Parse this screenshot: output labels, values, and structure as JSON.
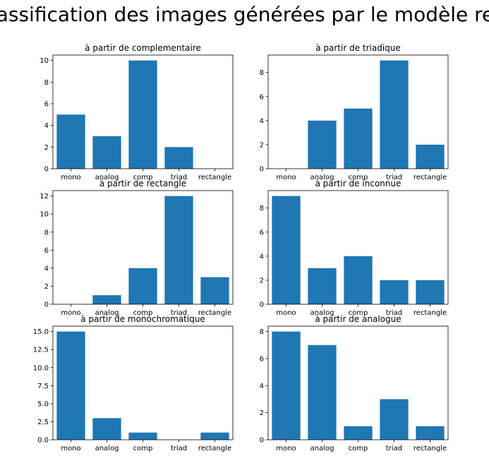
{
  "figure": {
    "suptitle": "Classification des images générées par le modèle rect"
  },
  "colors": {
    "bar": "#1f77b4",
    "axis": "#000000",
    "background": "#ffffff"
  },
  "chart_data": [
    {
      "type": "bar",
      "title": "à partir de complementaire",
      "categories": [
        "mono",
        "analog",
        "comp",
        "triad",
        "rectangle"
      ],
      "values": [
        5,
        3,
        10,
        2,
        0
      ],
      "ylim": [
        0,
        10.5
      ],
      "yticks": [
        0,
        2,
        4,
        6,
        8,
        10
      ],
      "ytick_labels": [
        "0",
        "2",
        "4",
        "6",
        "8",
        "10"
      ],
      "xlabel": "",
      "ylabel": "",
      "grid": false
    },
    {
      "type": "bar",
      "title": "à partir de triadique",
      "categories": [
        "mono",
        "analog",
        "comp",
        "triad",
        "rectangle"
      ],
      "values": [
        0,
        4,
        5,
        9,
        2
      ],
      "ylim": [
        0,
        9.45
      ],
      "yticks": [
        0,
        2,
        4,
        6,
        8
      ],
      "ytick_labels": [
        "0",
        "2",
        "4",
        "6",
        "8"
      ],
      "xlabel": "",
      "ylabel": "",
      "grid": false
    },
    {
      "type": "bar",
      "title": "à partir de rectangle",
      "categories": [
        "mono",
        "analog",
        "comp",
        "triad",
        "rectangle"
      ],
      "values": [
        0,
        1,
        4,
        12,
        3
      ],
      "ylim": [
        0,
        12.6
      ],
      "yticks": [
        0,
        2,
        4,
        6,
        8,
        10,
        12
      ],
      "ytick_labels": [
        "0",
        "2",
        "4",
        "6",
        "8",
        "10",
        "12"
      ],
      "xlabel": "",
      "ylabel": "",
      "grid": false
    },
    {
      "type": "bar",
      "title": "à partir de inconnue",
      "categories": [
        "mono",
        "analog",
        "comp",
        "triad",
        "rectangle"
      ],
      "values": [
        9,
        3,
        4,
        2,
        2
      ],
      "ylim": [
        0,
        9.45
      ],
      "yticks": [
        0,
        2,
        4,
        6,
        8
      ],
      "ytick_labels": [
        "0",
        "2",
        "4",
        "6",
        "8"
      ],
      "xlabel": "",
      "ylabel": "",
      "grid": false
    },
    {
      "type": "bar",
      "title": "à partir de monochromatique",
      "categories": [
        "mono",
        "analog",
        "comp",
        "triad",
        "rectangle"
      ],
      "values": [
        15,
        3,
        1,
        0,
        1
      ],
      "ylim": [
        0,
        15.75
      ],
      "yticks": [
        0,
        2.5,
        5,
        7.5,
        10,
        12.5,
        15
      ],
      "ytick_labels": [
        "0.0",
        "2.5",
        "5.0",
        "7.5",
        "10.0",
        "12.5",
        "15.0"
      ],
      "xlabel": "",
      "ylabel": "",
      "grid": false
    },
    {
      "type": "bar",
      "title": "à partir de analogue",
      "categories": [
        "mono",
        "analog",
        "comp",
        "triad",
        "rectangle"
      ],
      "values": [
        8,
        7,
        1,
        3,
        1
      ],
      "ylim": [
        0,
        8.4
      ],
      "yticks": [
        0,
        2,
        4,
        6,
        8
      ],
      "ytick_labels": [
        "0",
        "2",
        "4",
        "6",
        "8"
      ],
      "xlabel": "",
      "ylabel": "",
      "grid": false
    }
  ]
}
